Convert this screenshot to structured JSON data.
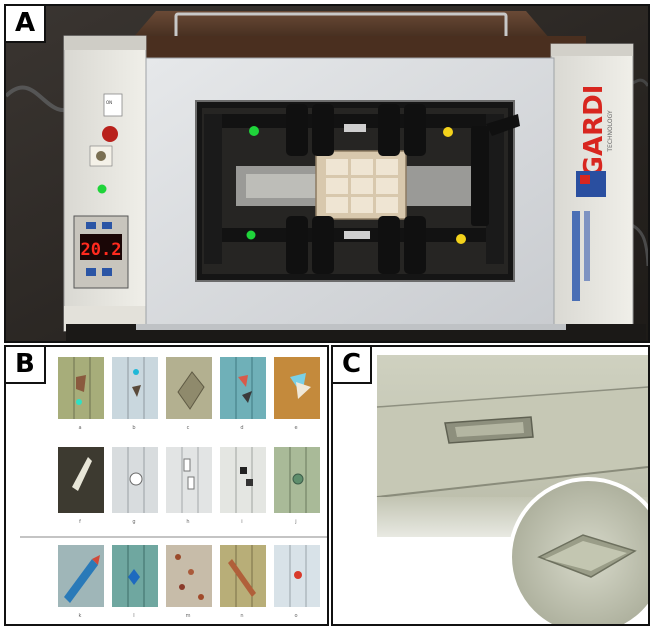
{
  "panels": {
    "a": {
      "letter": "A"
    },
    "b": {
      "letter": "B"
    },
    "c": {
      "letter": "C"
    }
  },
  "device": {
    "brand": "GARDI",
    "brand_sub": "TECHNOLOGY",
    "temperature_display": "20.2"
  },
  "panel_b": {
    "captions": [
      "a",
      "b",
      "c",
      "d",
      "e",
      "f",
      "g",
      "h",
      "i",
      "j",
      "k",
      "l",
      "m",
      "n",
      "o"
    ]
  },
  "colors": {
    "green_marker": "#1fd43a",
    "yellow_marker": "#f3d21b",
    "brand_red": "#d8261f",
    "brand_blue": "#2a4fa0",
    "display_red": "#ff2a1e"
  }
}
